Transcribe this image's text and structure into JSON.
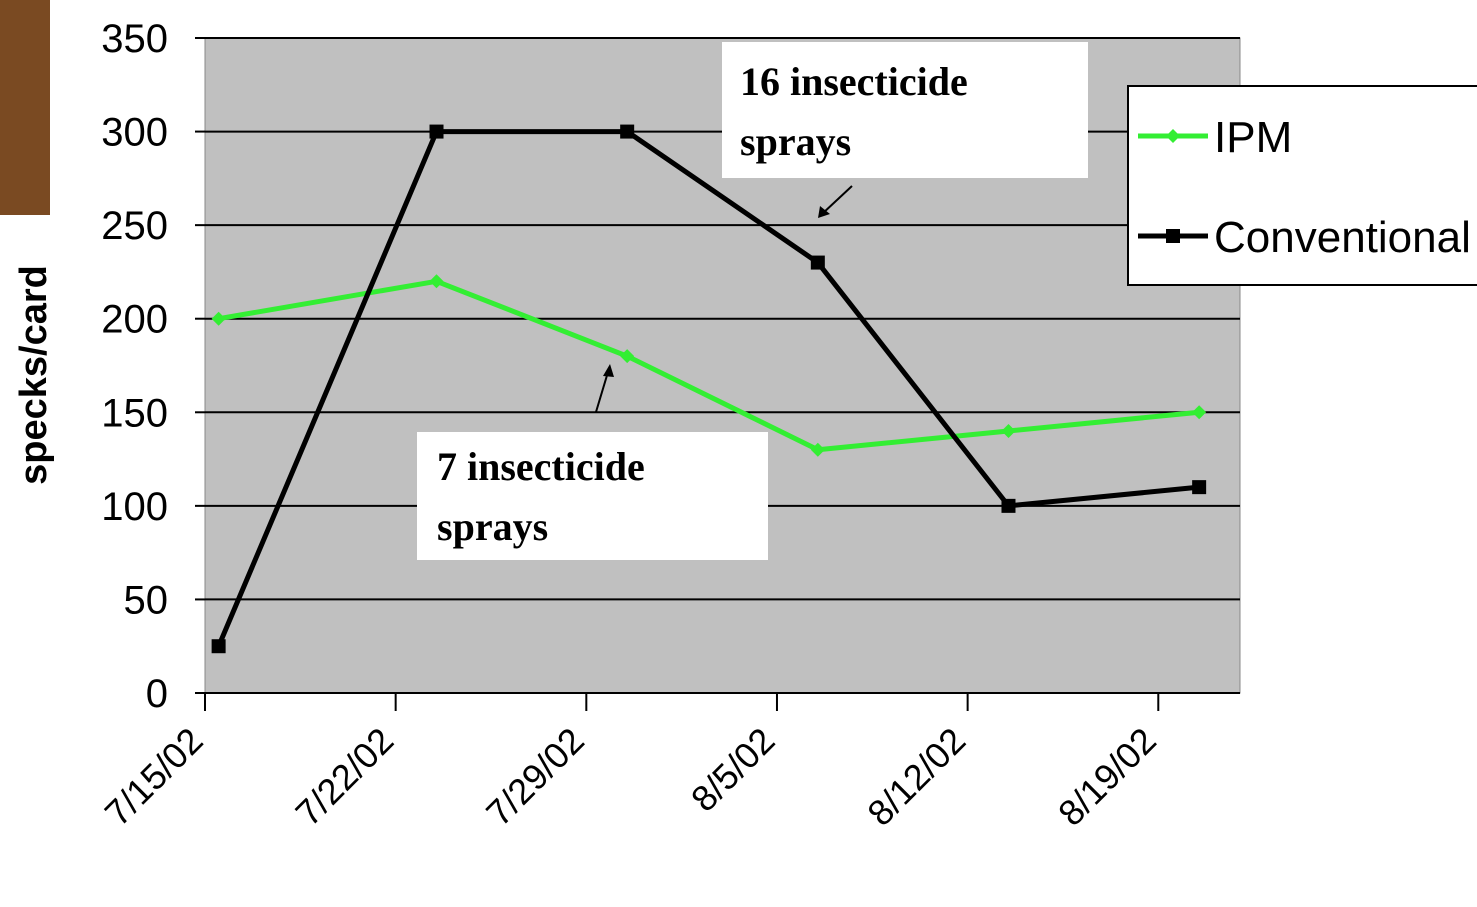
{
  "chart_data": {
    "type": "line",
    "y_label": "specks/card",
    "x": [
      "2002-07-15",
      "2002-07-23",
      "2002-07-30",
      "2002-08-06",
      "2002-08-13",
      "2002-08-20"
    ],
    "series": [
      {
        "name": "IPM",
        "color": "#33ee33",
        "marker": "diamond",
        "values": [
          200,
          220,
          180,
          130,
          140,
          150
        ]
      },
      {
        "name": "Conventional",
        "color": "#000000",
        "marker": "square",
        "values": [
          25,
          300,
          300,
          230,
          100,
          110
        ]
      }
    ],
    "xlim": [
      "2002-07-15",
      "2002-08-22"
    ],
    "xticks": [
      {
        "value": "2002-07-15",
        "label": "7/15/02"
      },
      {
        "value": "2002-07-22",
        "label": "7/22/02"
      },
      {
        "value": "2002-07-29",
        "label": "7/29/02"
      },
      {
        "value": "2002-08-05",
        "label": "8/5/02"
      },
      {
        "value": "2002-08-12",
        "label": "8/12/02"
      },
      {
        "value": "2002-08-19",
        "label": "8/19/02"
      }
    ],
    "ylim": [
      0,
      350
    ],
    "yticks": [
      0,
      50,
      100,
      150,
      200,
      250,
      300,
      350
    ],
    "grid": true,
    "legend": "right",
    "annotations": [
      {
        "lines": [
          "16 insecticide",
          "sprays"
        ]
      },
      {
        "lines": [
          "7 insecticide",
          "sprays"
        ]
      }
    ]
  }
}
